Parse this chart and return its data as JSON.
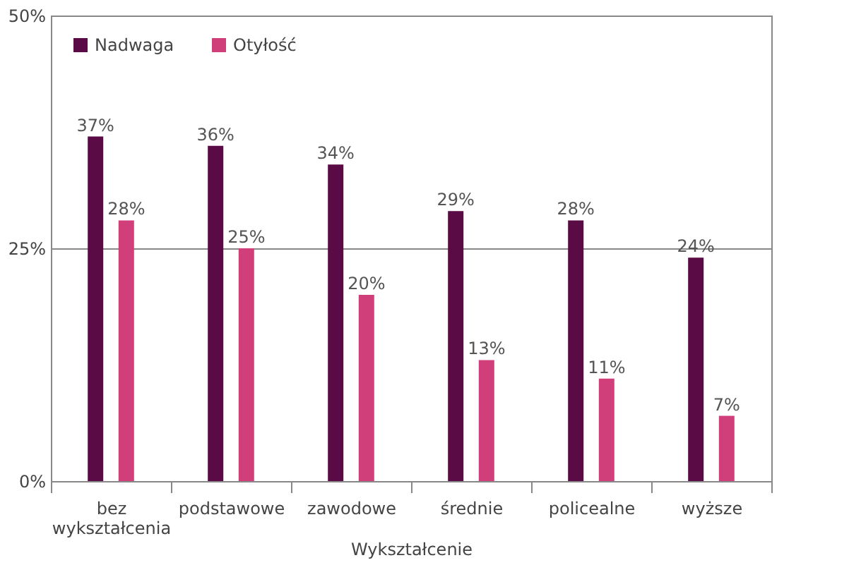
{
  "chart_data": {
    "type": "bar",
    "xlabel": "Wykształcenie",
    "categories": [
      "bez wykształcenia",
      "podstawowe",
      "zawodowe",
      "średnie",
      "policealne",
      "wyższe"
    ],
    "series": [
      {
        "name": "Nadwaga",
        "color": "#5a0a45",
        "values": [
          37,
          36,
          34,
          29,
          28,
          24
        ],
        "value_labels": [
          "37%",
          "36%",
          "34%",
          "29%",
          "28%",
          "24%"
        ]
      },
      {
        "name": "Otyłość",
        "color": "#d13f7a",
        "values": [
          28,
          25,
          20,
          13,
          11,
          7
        ],
        "value_labels": [
          "28%",
          "25%",
          "20%",
          "13%",
          "11%",
          "7%"
        ]
      }
    ],
    "ylim": [
      0,
      50
    ],
    "yticks": [
      {
        "value": 0,
        "label": "0%"
      },
      {
        "value": 25,
        "label": "25%"
      },
      {
        "value": 50,
        "label": "50%"
      }
    ],
    "grid": "y",
    "legend": "top left"
  }
}
